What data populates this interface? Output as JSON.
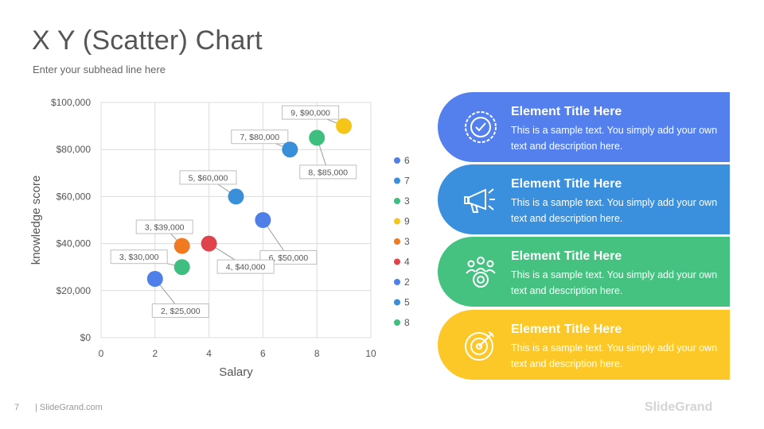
{
  "header": {
    "title": "X Y (Scatter) Chart",
    "subhead": "Enter your subhead  line here"
  },
  "chart_data": {
    "type": "scatter",
    "xlabel": "Salary",
    "ylabel": "knowledge score",
    "xlim": [
      0,
      10
    ],
    "ylim": [
      0,
      100000
    ],
    "xticks": [
      "0",
      "2",
      "4",
      "6",
      "8",
      "10"
    ],
    "yticks": [
      "$0",
      "$20,000",
      "$40,000",
      "$60,000",
      "$80,000",
      "$100,000"
    ],
    "grid": true,
    "legend_position": "right",
    "points": [
      {
        "x": 6,
        "y": 50000,
        "label": "6, $50,000",
        "legend": "6",
        "color": "#4F7FE8"
      },
      {
        "x": 7,
        "y": 80000,
        "label": "7, $80,000",
        "legend": "7",
        "color": "#3A8FD9"
      },
      {
        "x": 3,
        "y": 30000,
        "label": "3, $30,000",
        "legend": "3",
        "color": "#3FBF7F"
      },
      {
        "x": 9,
        "y": 90000,
        "label": "9, $90,000",
        "legend": "9",
        "color": "#F5C518"
      },
      {
        "x": 3,
        "y": 39000,
        "label": "3, $39,000",
        "legend": "3",
        "color": "#F07A22"
      },
      {
        "x": 4,
        "y": 40000,
        "label": "4, $40,000",
        "legend": "4",
        "color": "#E0434B"
      },
      {
        "x": 2,
        "y": 25000,
        "label": "2, $25,000",
        "legend": "2",
        "color": "#4F7FE8"
      },
      {
        "x": 5,
        "y": 60000,
        "label": "5, $60,000",
        "legend": "5",
        "color": "#3A8FD9"
      },
      {
        "x": 8,
        "y": 85000,
        "label": "8, $85,000",
        "legend": "8",
        "color": "#3FBF7F"
      }
    ]
  },
  "cards": [
    {
      "title": "Element Title Here",
      "text": "This is a sample text. You simply add your own text and description  here.",
      "color": "#5480EE",
      "icon": "badge-check-icon"
    },
    {
      "title": "Element Title Here",
      "text": "This is a sample text. You simply add your own text and description  here.",
      "color": "#3A90DC",
      "icon": "megaphone-icon"
    },
    {
      "title": "Element Title Here",
      "text": "This is a sample text. You simply add your own text and description  here.",
      "color": "#45C180",
      "icon": "team-target-icon"
    },
    {
      "title": "Element Title Here",
      "text": "This is a sample text. You simply add your own text and description  here.",
      "color": "#FCC828",
      "icon": "target-icon"
    }
  ],
  "footer": {
    "page_number": "7",
    "site": "| SlideGrand.com",
    "brand": "SlideGrand"
  }
}
